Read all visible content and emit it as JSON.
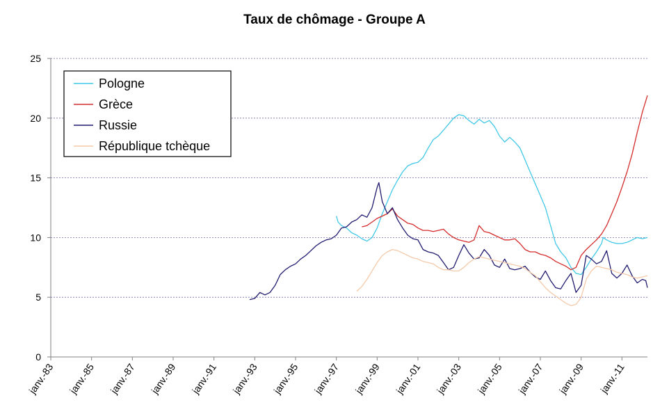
{
  "chart_data": {
    "type": "line",
    "title": "Taux de chômage - Groupe A",
    "xlabel": "",
    "ylabel": "",
    "ylim": [
      0,
      25
    ],
    "yticks": [
      0,
      5,
      10,
      15,
      20,
      25
    ],
    "xlim": [
      "1983-01",
      "2012-04"
    ],
    "x_tick_labels": [
      "janv.-83",
      "janv.-85",
      "janv.-87",
      "janv.-89",
      "janv.-91",
      "janv.-93",
      "janv.-95",
      "janv.-97",
      "janv.-99",
      "janv.-01",
      "janv.-03",
      "janv.-05",
      "janv.-07",
      "janv.-09",
      "janv.-11"
    ],
    "grid": "horizontal dashed",
    "legend": "top-left",
    "series": [
      {
        "name": "Pologne",
        "color": "#3fc8e6",
        "points": [
          [
            "1997-01",
            11.8
          ],
          [
            "1997-02",
            11.3
          ],
          [
            "1997-04",
            11.0
          ],
          [
            "1997-07",
            10.8
          ],
          [
            "1997-10",
            10.4
          ],
          [
            "1998-01",
            10.2
          ],
          [
            "1998-04",
            9.9
          ],
          [
            "1998-07",
            9.7
          ],
          [
            "1998-10",
            10.0
          ],
          [
            "1999-01",
            10.8
          ],
          [
            "1999-04",
            12.0
          ],
          [
            "1999-07",
            13.0
          ],
          [
            "1999-10",
            14.0
          ],
          [
            "2000-01",
            14.8
          ],
          [
            "2000-04",
            15.5
          ],
          [
            "2000-07",
            16.0
          ],
          [
            "2000-10",
            16.2
          ],
          [
            "2001-01",
            16.3
          ],
          [
            "2001-04",
            16.7
          ],
          [
            "2001-07",
            17.5
          ],
          [
            "2001-10",
            18.2
          ],
          [
            "2002-01",
            18.5
          ],
          [
            "2002-04",
            19.0
          ],
          [
            "2002-07",
            19.5
          ],
          [
            "2002-10",
            20.0
          ],
          [
            "2003-01",
            20.3
          ],
          [
            "2003-04",
            20.2
          ],
          [
            "2003-07",
            19.8
          ],
          [
            "2003-10",
            19.5
          ],
          [
            "2004-01",
            19.9
          ],
          [
            "2004-04",
            19.6
          ],
          [
            "2004-07",
            19.8
          ],
          [
            "2004-10",
            19.3
          ],
          [
            "2005-01",
            18.5
          ],
          [
            "2005-04",
            18.0
          ],
          [
            "2005-07",
            18.4
          ],
          [
            "2005-10",
            18.0
          ],
          [
            "2006-01",
            17.5
          ],
          [
            "2006-04",
            16.5
          ],
          [
            "2006-07",
            15.5
          ],
          [
            "2006-10",
            14.5
          ],
          [
            "2007-01",
            13.5
          ],
          [
            "2007-04",
            12.5
          ],
          [
            "2007-07",
            11.0
          ],
          [
            "2007-10",
            9.5
          ],
          [
            "2008-01",
            8.8
          ],
          [
            "2008-04",
            8.3
          ],
          [
            "2008-07",
            7.5
          ],
          [
            "2008-10",
            7.0
          ],
          [
            "2009-01",
            6.9
          ],
          [
            "2009-04",
            7.5
          ],
          [
            "2009-07",
            8.2
          ],
          [
            "2009-10",
            8.8
          ],
          [
            "2010-01",
            9.5
          ],
          [
            "2010-02",
            10.0
          ],
          [
            "2010-04",
            9.8
          ],
          [
            "2010-07",
            9.6
          ],
          [
            "2010-10",
            9.5
          ],
          [
            "2011-01",
            9.5
          ],
          [
            "2011-04",
            9.6
          ],
          [
            "2011-07",
            9.8
          ],
          [
            "2011-10",
            10.0
          ],
          [
            "2012-01",
            9.9
          ],
          [
            "2012-04",
            10.0
          ]
        ]
      },
      {
        "name": "Grèce",
        "color": "#d42a2a",
        "points": [
          [
            "1998-04",
            10.9
          ],
          [
            "1998-07",
            11.0
          ],
          [
            "1998-10",
            11.3
          ],
          [
            "1999-01",
            11.6
          ],
          [
            "1999-04",
            11.8
          ],
          [
            "1999-07",
            12.0
          ],
          [
            "1999-10",
            12.4
          ],
          [
            "2000-01",
            11.8
          ],
          [
            "2000-04",
            11.5
          ],
          [
            "2000-07",
            11.2
          ],
          [
            "2000-10",
            11.1
          ],
          [
            "2001-01",
            10.8
          ],
          [
            "2001-04",
            10.6
          ],
          [
            "2001-07",
            10.6
          ],
          [
            "2001-10",
            10.5
          ],
          [
            "2002-01",
            10.6
          ],
          [
            "2002-04",
            10.7
          ],
          [
            "2002-07",
            10.3
          ],
          [
            "2002-10",
            10.0
          ],
          [
            "2003-01",
            9.8
          ],
          [
            "2003-04",
            9.7
          ],
          [
            "2003-07",
            9.6
          ],
          [
            "2003-10",
            9.8
          ],
          [
            "2004-01",
            11.0
          ],
          [
            "2004-04",
            10.5
          ],
          [
            "2004-07",
            10.4
          ],
          [
            "2004-10",
            10.2
          ],
          [
            "2005-01",
            10.0
          ],
          [
            "2005-04",
            9.8
          ],
          [
            "2005-07",
            9.8
          ],
          [
            "2005-10",
            9.9
          ],
          [
            "2006-01",
            9.5
          ],
          [
            "2006-04",
            9.0
          ],
          [
            "2006-07",
            8.8
          ],
          [
            "2006-10",
            8.8
          ],
          [
            "2007-01",
            8.6
          ],
          [
            "2007-04",
            8.5
          ],
          [
            "2007-07",
            8.3
          ],
          [
            "2007-10",
            8.0
          ],
          [
            "2008-01",
            7.8
          ],
          [
            "2008-04",
            7.6
          ],
          [
            "2008-07",
            7.3
          ],
          [
            "2008-10",
            7.5
          ],
          [
            "2009-01",
            8.5
          ],
          [
            "2009-04",
            9.0
          ],
          [
            "2009-07",
            9.4
          ],
          [
            "2009-10",
            9.8
          ],
          [
            "2010-01",
            10.3
          ],
          [
            "2010-04",
            11.0
          ],
          [
            "2010-07",
            12.0
          ],
          [
            "2010-10",
            13.0
          ],
          [
            "2011-01",
            14.2
          ],
          [
            "2011-04",
            15.5
          ],
          [
            "2011-07",
            17.0
          ],
          [
            "2011-10",
            18.8
          ],
          [
            "2012-01",
            20.5
          ],
          [
            "2012-04",
            21.9
          ]
        ]
      },
      {
        "name": "Russie",
        "color": "#1f1a6e",
        "points": [
          [
            "1992-10",
            4.8
          ],
          [
            "1993-01",
            4.9
          ],
          [
            "1993-04",
            5.4
          ],
          [
            "1993-07",
            5.2
          ],
          [
            "1993-10",
            5.4
          ],
          [
            "1994-01",
            6.0
          ],
          [
            "1994-04",
            6.9
          ],
          [
            "1994-07",
            7.3
          ],
          [
            "1994-10",
            7.6
          ],
          [
            "1995-01",
            7.8
          ],
          [
            "1995-04",
            8.2
          ],
          [
            "1995-07",
            8.5
          ],
          [
            "1995-10",
            8.9
          ],
          [
            "1996-01",
            9.3
          ],
          [
            "1996-04",
            9.6
          ],
          [
            "1996-07",
            9.8
          ],
          [
            "1996-10",
            9.9
          ],
          [
            "1997-01",
            10.2
          ],
          [
            "1997-04",
            10.8
          ],
          [
            "1997-07",
            10.9
          ],
          [
            "1997-10",
            11.3
          ],
          [
            "1998-01",
            11.5
          ],
          [
            "1998-04",
            11.9
          ],
          [
            "1998-07",
            11.7
          ],
          [
            "1998-10",
            12.5
          ],
          [
            "1999-01",
            14.2
          ],
          [
            "1999-02",
            14.6
          ],
          [
            "1999-04",
            13.0
          ],
          [
            "1999-07",
            12.0
          ],
          [
            "1999-10",
            12.5
          ],
          [
            "2000-01",
            11.5
          ],
          [
            "2000-04",
            10.8
          ],
          [
            "2000-07",
            10.2
          ],
          [
            "2000-10",
            9.9
          ],
          [
            "2001-01",
            9.8
          ],
          [
            "2001-04",
            9.0
          ],
          [
            "2001-07",
            8.8
          ],
          [
            "2001-10",
            8.7
          ],
          [
            "2002-01",
            8.5
          ],
          [
            "2002-04",
            7.9
          ],
          [
            "2002-07",
            7.3
          ],
          [
            "2002-10",
            7.5
          ],
          [
            "2003-01",
            8.5
          ],
          [
            "2003-04",
            9.4
          ],
          [
            "2003-07",
            8.7
          ],
          [
            "2003-10",
            8.2
          ],
          [
            "2004-01",
            8.3
          ],
          [
            "2004-04",
            9.0
          ],
          [
            "2004-07",
            8.5
          ],
          [
            "2004-10",
            7.7
          ],
          [
            "2005-01",
            7.5
          ],
          [
            "2005-04",
            8.2
          ],
          [
            "2005-07",
            7.4
          ],
          [
            "2005-10",
            7.3
          ],
          [
            "2006-01",
            7.4
          ],
          [
            "2006-04",
            7.6
          ],
          [
            "2006-07",
            7.1
          ],
          [
            "2006-10",
            6.7
          ],
          [
            "2007-01",
            6.5
          ],
          [
            "2007-04",
            7.2
          ],
          [
            "2007-07",
            6.4
          ],
          [
            "2007-10",
            5.8
          ],
          [
            "2008-01",
            5.7
          ],
          [
            "2008-04",
            6.4
          ],
          [
            "2008-07",
            7.0
          ],
          [
            "2008-10",
            5.4
          ],
          [
            "2009-01",
            6.0
          ],
          [
            "2009-04",
            8.5
          ],
          [
            "2009-07",
            8.2
          ],
          [
            "2009-10",
            7.8
          ],
          [
            "2010-01",
            8.0
          ],
          [
            "2010-04",
            8.9
          ],
          [
            "2010-07",
            7.0
          ],
          [
            "2010-10",
            6.6
          ],
          [
            "2011-01",
            7.0
          ],
          [
            "2011-04",
            7.7
          ],
          [
            "2011-07",
            6.8
          ],
          [
            "2011-10",
            6.2
          ],
          [
            "2012-01",
            6.5
          ],
          [
            "2012-03",
            6.4
          ],
          [
            "2012-04",
            5.8
          ]
        ]
      },
      {
        "name": "République tchèque",
        "color": "#f5c9a8",
        "points": [
          [
            "1998-01",
            5.5
          ],
          [
            "1998-04",
            5.9
          ],
          [
            "1998-07",
            6.5
          ],
          [
            "1998-10",
            7.2
          ],
          [
            "1999-01",
            7.9
          ],
          [
            "1999-04",
            8.5
          ],
          [
            "1999-07",
            8.8
          ],
          [
            "1999-10",
            9.0
          ],
          [
            "2000-01",
            8.9
          ],
          [
            "2000-04",
            8.7
          ],
          [
            "2000-07",
            8.5
          ],
          [
            "2000-10",
            8.3
          ],
          [
            "2001-01",
            8.2
          ],
          [
            "2001-04",
            8.0
          ],
          [
            "2001-07",
            7.9
          ],
          [
            "2001-10",
            7.8
          ],
          [
            "2002-01",
            7.5
          ],
          [
            "2002-04",
            7.3
          ],
          [
            "2002-07",
            7.3
          ],
          [
            "2002-10",
            7.2
          ],
          [
            "2003-01",
            7.2
          ],
          [
            "2003-04",
            7.5
          ],
          [
            "2003-07",
            7.9
          ],
          [
            "2003-10",
            8.2
          ],
          [
            "2004-01",
            8.4
          ],
          [
            "2004-04",
            8.3
          ],
          [
            "2004-07",
            8.2
          ],
          [
            "2004-10",
            8.1
          ],
          [
            "2005-01",
            8.0
          ],
          [
            "2005-04",
            7.9
          ],
          [
            "2005-07",
            7.8
          ],
          [
            "2005-10",
            7.7
          ],
          [
            "2006-01",
            7.6
          ],
          [
            "2006-04",
            7.4
          ],
          [
            "2006-07",
            7.1
          ],
          [
            "2006-10",
            6.8
          ],
          [
            "2007-01",
            6.3
          ],
          [
            "2007-04",
            5.8
          ],
          [
            "2007-07",
            5.4
          ],
          [
            "2007-10",
            5.1
          ],
          [
            "2008-01",
            4.8
          ],
          [
            "2008-04",
            4.5
          ],
          [
            "2008-07",
            4.3
          ],
          [
            "2008-10",
            4.4
          ],
          [
            "2009-01",
            5.0
          ],
          [
            "2009-04",
            6.5
          ],
          [
            "2009-07",
            7.2
          ],
          [
            "2009-10",
            7.6
          ],
          [
            "2010-01",
            7.5
          ],
          [
            "2010-04",
            7.4
          ],
          [
            "2010-07",
            7.3
          ],
          [
            "2010-10",
            7.1
          ],
          [
            "2011-01",
            7.0
          ],
          [
            "2011-04",
            6.9
          ],
          [
            "2011-07",
            6.7
          ],
          [
            "2011-10",
            6.6
          ],
          [
            "2012-01",
            6.7
          ],
          [
            "2012-04",
            6.8
          ]
        ]
      }
    ]
  }
}
